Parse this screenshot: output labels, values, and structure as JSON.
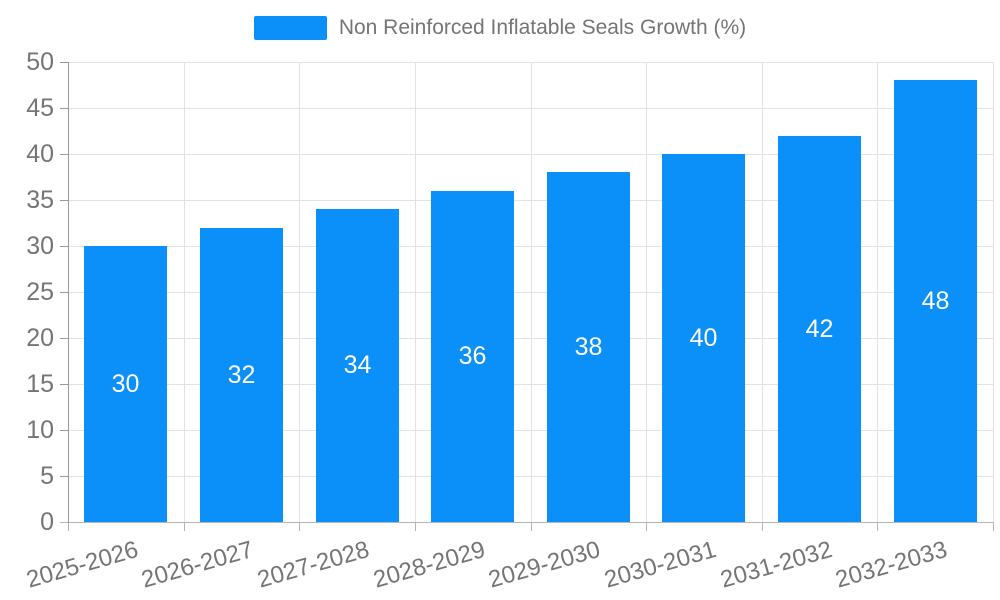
{
  "legend": {
    "label": "Non Reinforced Inflatable Seals Growth (%)"
  },
  "chart_data": {
    "type": "bar",
    "title": "",
    "xlabel": "",
    "ylabel": "",
    "categories": [
      "2025-2026",
      "2026-2027",
      "2027-2028",
      "2028-2029",
      "2029-2030",
      "2030-2031",
      "2031-2032",
      "2032-2033"
    ],
    "series": [
      {
        "name": "Non Reinforced Inflatable Seals Growth (%)",
        "values": [
          30,
          32,
          34,
          36,
          38,
          40,
          42,
          48
        ]
      }
    ],
    "ylim": [
      0,
      50
    ],
    "ytick_step": 5,
    "ytick_labels": [
      "0",
      "5",
      "10",
      "15",
      "20",
      "25",
      "30",
      "35",
      "40",
      "45",
      "50"
    ],
    "grid": true,
    "legend_position": "top",
    "value_label_position": "inside-center",
    "colors": {
      "bar": "#0a90f8",
      "grid_line": "#e2e2e2",
      "y_axis_line": "#999999",
      "x_axis_line": "#b5b5b5",
      "tick_label": "#757575",
      "value_label": "#ffffff",
      "legend_text": "#757575"
    }
  }
}
